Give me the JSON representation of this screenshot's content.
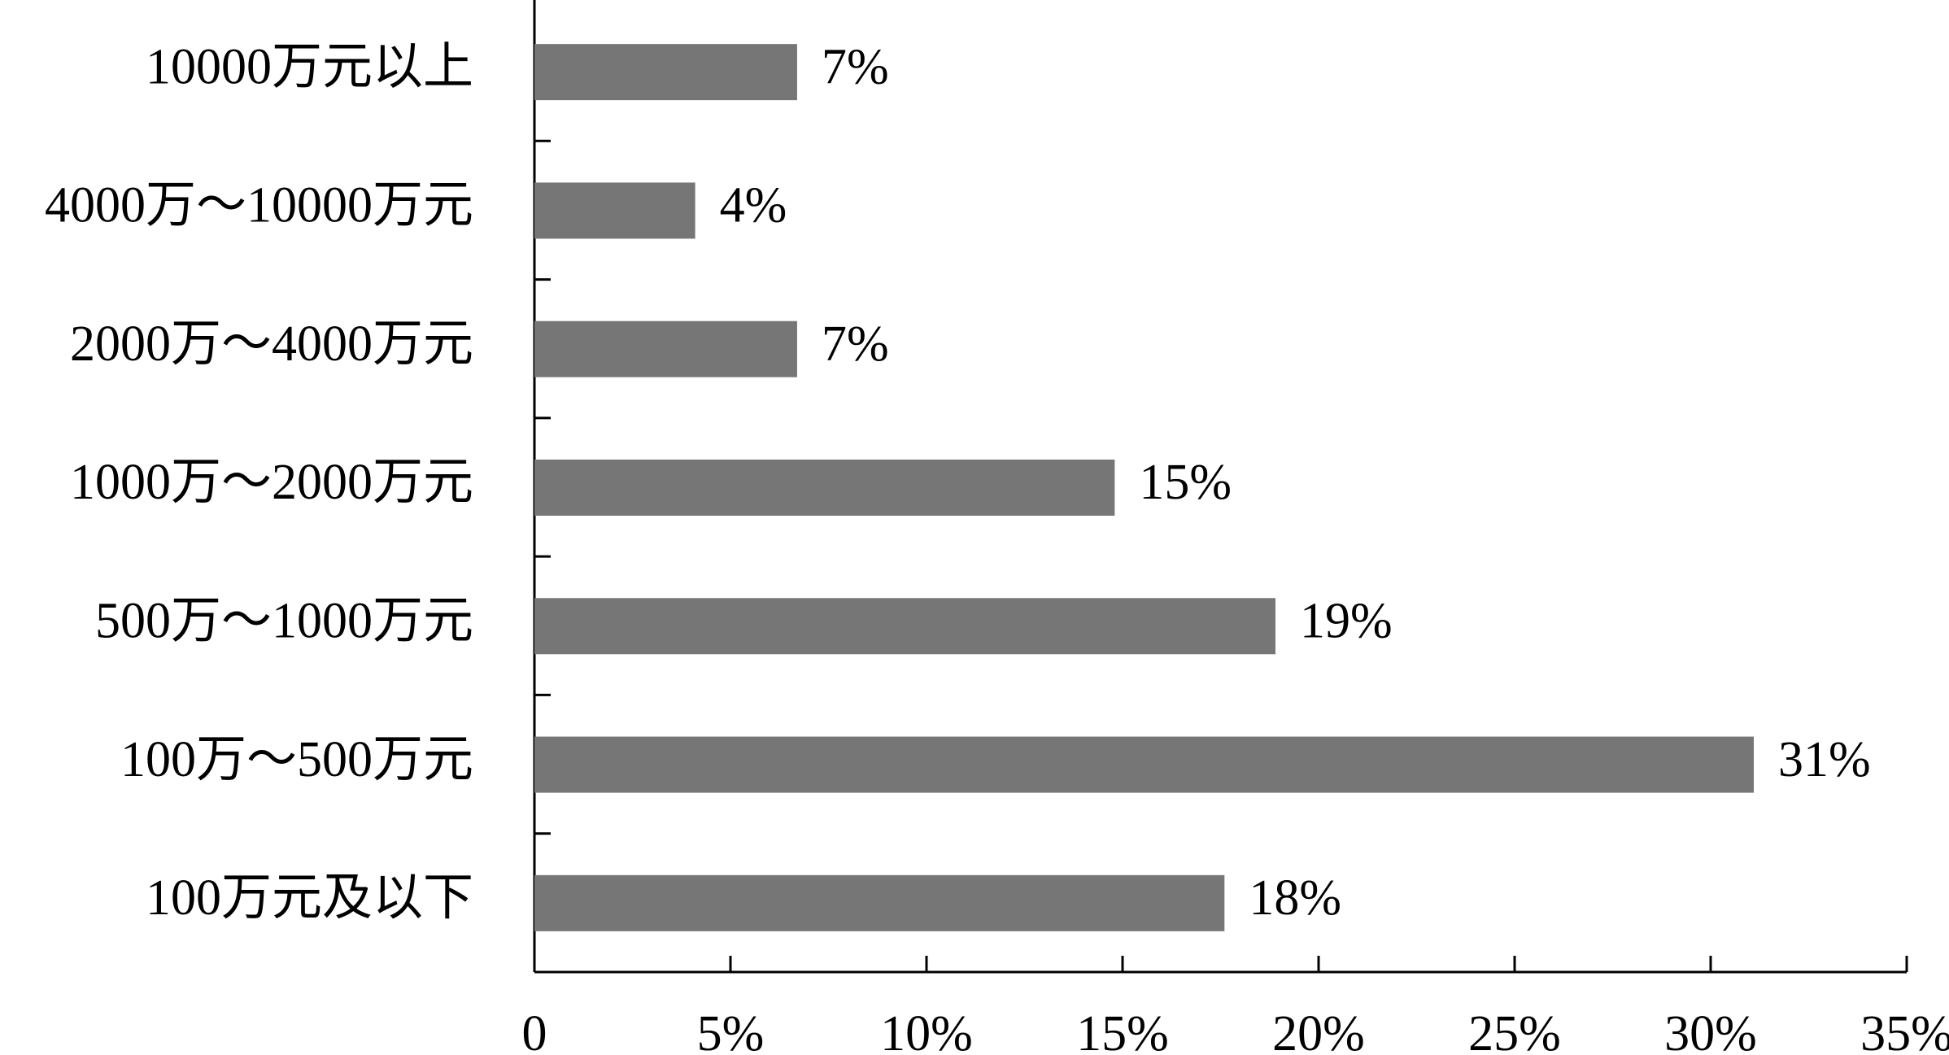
{
  "chart_data": {
    "type": "bar",
    "orientation": "horizontal",
    "categories": [
      "10000万元以上",
      "4000万～10000万元",
      "2000万～4000万元",
      "1000万～2000万元",
      "500万～1000万元",
      "100万～500万元",
      "100万元及以下"
    ],
    "values": [
      6.7,
      4.1,
      6.7,
      14.8,
      18.9,
      31.1,
      17.6
    ],
    "value_labels": [
      "7%",
      "4%",
      "7%",
      "15%",
      "19%",
      "31%",
      "18%"
    ],
    "color": "#767676",
    "xlim": [
      0,
      35
    ],
    "xticks": [
      0,
      {
        "value": 5,
        "label": "5%"
      },
      {
        "value": 10,
        "label": "10%"
      },
      {
        "value": 15,
        "label": "15%"
      },
      {
        "value": 20,
        "label": "20%"
      },
      {
        "value": 25,
        "label": "25%"
      },
      {
        "value": 30,
        "label": "30%"
      },
      {
        "value": 35,
        "label": "35%"
      }
    ],
    "grid": false
  }
}
